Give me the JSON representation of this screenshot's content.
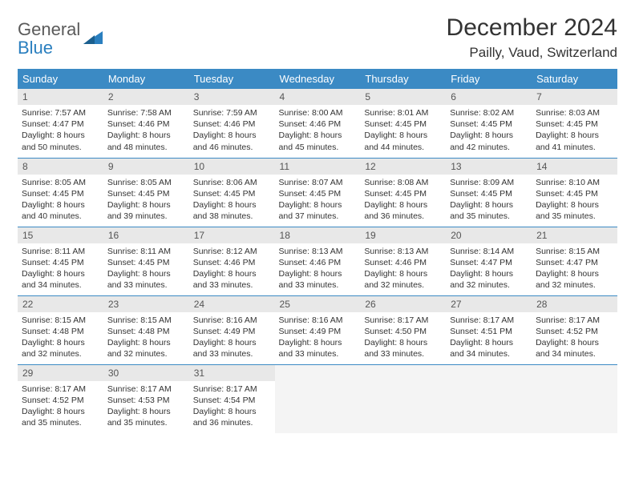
{
  "logo": {
    "word1": "General",
    "word2": "Blue"
  },
  "colors": {
    "header_bg": "#3b8ac4",
    "header_text": "#ffffff",
    "daynum_bg": "#e8e8e8",
    "divider": "#3b8ac4",
    "logo_gray": "#5a5a5a",
    "logo_blue": "#2a7fbf",
    "body_text": "#333333",
    "empty_bg": "#f4f4f4",
    "page_bg": "#ffffff"
  },
  "title": "December 2024",
  "location": "Pailly, Vaud, Switzerland",
  "weekdays": [
    "Sunday",
    "Monday",
    "Tuesday",
    "Wednesday",
    "Thursday",
    "Friday",
    "Saturday"
  ],
  "weeks": [
    [
      {
        "n": "1",
        "sr": "7:57 AM",
        "ss": "4:47 PM",
        "dl": "8 hours and 50 minutes."
      },
      {
        "n": "2",
        "sr": "7:58 AM",
        "ss": "4:46 PM",
        "dl": "8 hours and 48 minutes."
      },
      {
        "n": "3",
        "sr": "7:59 AM",
        "ss": "4:46 PM",
        "dl": "8 hours and 46 minutes."
      },
      {
        "n": "4",
        "sr": "8:00 AM",
        "ss": "4:46 PM",
        "dl": "8 hours and 45 minutes."
      },
      {
        "n": "5",
        "sr": "8:01 AM",
        "ss": "4:45 PM",
        "dl": "8 hours and 44 minutes."
      },
      {
        "n": "6",
        "sr": "8:02 AM",
        "ss": "4:45 PM",
        "dl": "8 hours and 42 minutes."
      },
      {
        "n": "7",
        "sr": "8:03 AM",
        "ss": "4:45 PM",
        "dl": "8 hours and 41 minutes."
      }
    ],
    [
      {
        "n": "8",
        "sr": "8:05 AM",
        "ss": "4:45 PM",
        "dl": "8 hours and 40 minutes."
      },
      {
        "n": "9",
        "sr": "8:05 AM",
        "ss": "4:45 PM",
        "dl": "8 hours and 39 minutes."
      },
      {
        "n": "10",
        "sr": "8:06 AM",
        "ss": "4:45 PM",
        "dl": "8 hours and 38 minutes."
      },
      {
        "n": "11",
        "sr": "8:07 AM",
        "ss": "4:45 PM",
        "dl": "8 hours and 37 minutes."
      },
      {
        "n": "12",
        "sr": "8:08 AM",
        "ss": "4:45 PM",
        "dl": "8 hours and 36 minutes."
      },
      {
        "n": "13",
        "sr": "8:09 AM",
        "ss": "4:45 PM",
        "dl": "8 hours and 35 minutes."
      },
      {
        "n": "14",
        "sr": "8:10 AM",
        "ss": "4:45 PM",
        "dl": "8 hours and 35 minutes."
      }
    ],
    [
      {
        "n": "15",
        "sr": "8:11 AM",
        "ss": "4:45 PM",
        "dl": "8 hours and 34 minutes."
      },
      {
        "n": "16",
        "sr": "8:11 AM",
        "ss": "4:45 PM",
        "dl": "8 hours and 33 minutes."
      },
      {
        "n": "17",
        "sr": "8:12 AM",
        "ss": "4:46 PM",
        "dl": "8 hours and 33 minutes."
      },
      {
        "n": "18",
        "sr": "8:13 AM",
        "ss": "4:46 PM",
        "dl": "8 hours and 33 minutes."
      },
      {
        "n": "19",
        "sr": "8:13 AM",
        "ss": "4:46 PM",
        "dl": "8 hours and 32 minutes."
      },
      {
        "n": "20",
        "sr": "8:14 AM",
        "ss": "4:47 PM",
        "dl": "8 hours and 32 minutes."
      },
      {
        "n": "21",
        "sr": "8:15 AM",
        "ss": "4:47 PM",
        "dl": "8 hours and 32 minutes."
      }
    ],
    [
      {
        "n": "22",
        "sr": "8:15 AM",
        "ss": "4:48 PM",
        "dl": "8 hours and 32 minutes."
      },
      {
        "n": "23",
        "sr": "8:15 AM",
        "ss": "4:48 PM",
        "dl": "8 hours and 32 minutes."
      },
      {
        "n": "24",
        "sr": "8:16 AM",
        "ss": "4:49 PM",
        "dl": "8 hours and 33 minutes."
      },
      {
        "n": "25",
        "sr": "8:16 AM",
        "ss": "4:49 PM",
        "dl": "8 hours and 33 minutes."
      },
      {
        "n": "26",
        "sr": "8:17 AM",
        "ss": "4:50 PM",
        "dl": "8 hours and 33 minutes."
      },
      {
        "n": "27",
        "sr": "8:17 AM",
        "ss": "4:51 PM",
        "dl": "8 hours and 34 minutes."
      },
      {
        "n": "28",
        "sr": "8:17 AM",
        "ss": "4:52 PM",
        "dl": "8 hours and 34 minutes."
      }
    ],
    [
      {
        "n": "29",
        "sr": "8:17 AM",
        "ss": "4:52 PM",
        "dl": "8 hours and 35 minutes."
      },
      {
        "n": "30",
        "sr": "8:17 AM",
        "ss": "4:53 PM",
        "dl": "8 hours and 35 minutes."
      },
      {
        "n": "31",
        "sr": "8:17 AM",
        "ss": "4:54 PM",
        "dl": "8 hours and 36 minutes."
      },
      null,
      null,
      null,
      null
    ]
  ],
  "labels": {
    "sunrise": "Sunrise:",
    "sunset": "Sunset:",
    "daylight": "Daylight:"
  }
}
